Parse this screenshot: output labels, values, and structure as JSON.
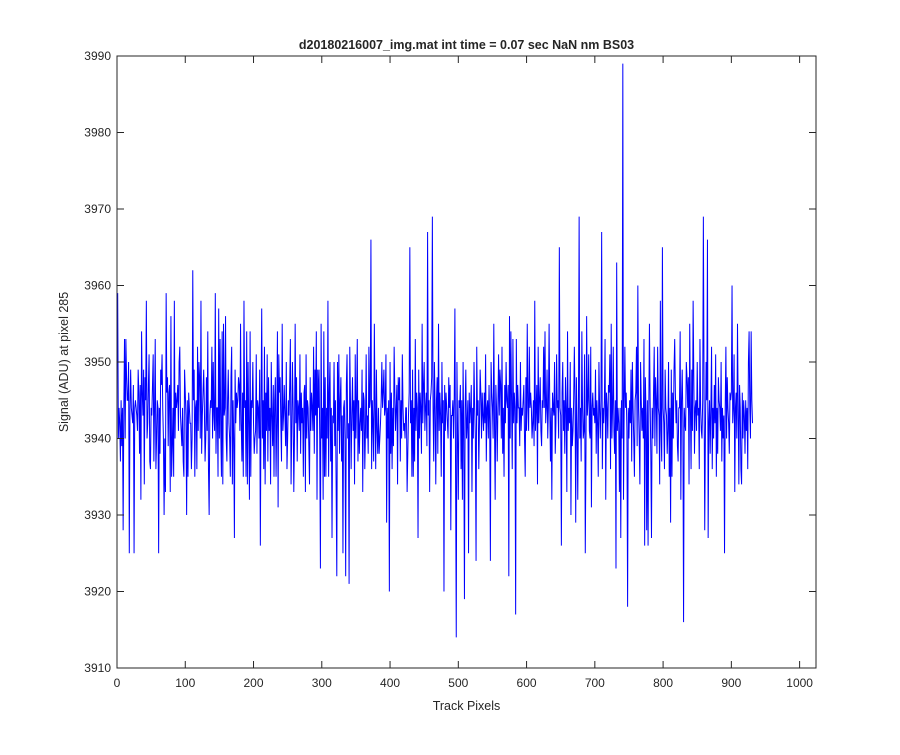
{
  "chart_data": {
    "type": "line",
    "title": "d20180216007_img.mat int time = 0.07 sec  NaN nm BS03",
    "xlabel": "Track Pixels",
    "ylabel": "Signal (ADU) at pixel 285",
    "xlim": [
      0,
      1024
    ],
    "ylim": [
      3910,
      3990
    ],
    "xticks": [
      0,
      100,
      200,
      300,
      400,
      500,
      600,
      700,
      800,
      900,
      1000
    ],
    "yticks": [
      3910,
      3920,
      3930,
      3940,
      3950,
      3960,
      3970,
      3980,
      3990
    ],
    "grid": false,
    "legend": "none",
    "series": [
      {
        "color": "#0000ff",
        "x_start": 1,
        "x_step": 1,
        "values": [
          3959,
          3940,
          3944,
          3942,
          3937,
          3945,
          3939,
          3944,
          3928,
          3944,
          3953,
          3940,
          3953,
          3948,
          3945,
          3945,
          3950,
          3925,
          3944,
          3949,
          3944,
          3943,
          3942,
          3947,
          3925,
          3944,
          3945,
          3944,
          3943,
          3941,
          3949,
          3946,
          3938,
          3947,
          3932,
          3954,
          3946,
          3943,
          3949,
          3934,
          3948,
          3945,
          3958,
          3940,
          3942,
          3947,
          3951,
          3937,
          3936,
          3944,
          3943,
          3947,
          3951,
          3937,
          3944,
          3953,
          3936,
          3940,
          3945,
          3944,
          3925,
          3944,
          3938,
          3949,
          3947,
          3951,
          3944,
          3940,
          3930,
          3940,
          3933,
          3959,
          3946,
          3948,
          3939,
          3946,
          3947,
          3933,
          3956,
          3935,
          3939,
          3944,
          3935,
          3958,
          3940,
          3946,
          3944,
          3945,
          3947,
          3941,
          3950,
          3952,
          3943,
          3941,
          3939,
          3944,
          3937,
          3935,
          3949,
          3946,
          3943,
          3930,
          3945,
          3935,
          3946,
          3944,
          3942,
          3942,
          3936,
          3940,
          3962,
          3945,
          3949,
          3935,
          3944,
          3945,
          3936,
          3952,
          3941,
          3950,
          3948,
          3940,
          3958,
          3938,
          3943,
          3946,
          3949,
          3944,
          3937,
          3940,
          3948,
          3941,
          3954,
          3936,
          3930,
          3943,
          3945,
          3944,
          3952,
          3940,
          3950,
          3943,
          3941,
          3959,
          3938,
          3944,
          3944,
          3935,
          3957,
          3940,
          3953,
          3941,
          3935,
          3954,
          3934,
          3955,
          3943,
          3944,
          3956,
          3940,
          3937,
          3945,
          3949,
          3942,
          3940,
          3935,
          3948,
          3952,
          3934,
          3945,
          3940,
          3927,
          3949,
          3942,
          3946,
          3944,
          3945,
          3948,
          3947,
          3941,
          3955,
          3942,
          3937,
          3946,
          3935,
          3958,
          3944,
          3945,
          3935,
          3954,
          3934,
          3950,
          3942,
          3932,
          3954,
          3935,
          3945,
          3944,
          3950,
          3942,
          3938,
          3940,
          3941,
          3951,
          3938,
          3945,
          3944,
          3940,
          3949,
          3926,
          3944,
          3957,
          3940,
          3945,
          3936,
          3952,
          3934,
          3946,
          3941,
          3951,
          3937,
          3948,
          3941,
          3944,
          3934,
          3950,
          3943,
          3939,
          3947,
          3935,
          3945,
          3948,
          3935,
          3942,
          3954,
          3931,
          3951,
          3946,
          3948,
          3942,
          3937,
          3955,
          3941,
          3943,
          3947,
          3943,
          3939,
          3950,
          3936,
          3940,
          3945,
          3943,
          3947,
          3953,
          3934,
          3941,
          3950,
          3944,
          3933,
          3940,
          3955,
          3942,
          3948,
          3937,
          3945,
          3944,
          3941,
          3951,
          3938,
          3946,
          3942,
          3944,
          3935,
          3946,
          3947,
          3933,
          3951,
          3940,
          3945,
          3944,
          3939,
          3934,
          3948,
          3941,
          3946,
          3944,
          3941,
          3952,
          3938,
          3949,
          3943,
          3954,
          3932,
          3949,
          3944,
          3949,
          3940,
          3923,
          3955,
          3940,
          3944,
          3932,
          3954,
          3935,
          3948,
          3935,
          3944,
          3940,
          3958,
          3935,
          3946,
          3950,
          3937,
          3944,
          3927,
          3943,
          3942,
          3950,
          3939,
          3945,
          3934,
          3922,
          3950,
          3941,
          3951,
          3938,
          3945,
          3948,
          3937,
          3943,
          3925,
          3944,
          3945,
          3940,
          3922,
          3947,
          3951,
          3940,
          3942,
          3921,
          3952,
          3945,
          3936,
          3943,
          3948,
          3941,
          3945,
          3934,
          3951,
          3940,
          3945,
          3953,
          3937,
          3945,
          3938,
          3942,
          3944,
          3941,
          3949,
          3933,
          3946,
          3945,
          3936,
          3941,
          3951,
          3940,
          3943,
          3938,
          3952,
          3944,
          3945,
          3966,
          3936,
          3945,
          3942,
          3937,
          3955,
          3944,
          3936,
          3949,
          3941,
          3938,
          3944,
          3938,
          3940,
          3942,
          3945,
          3950,
          3944,
          3946,
          3949,
          3943,
          3944,
          3951,
          3929,
          3944,
          3940,
          3945,
          3920,
          3950,
          3938,
          3946,
          3936,
          3944,
          3939,
          3952,
          3946,
          3941,
          3944,
          3947,
          3934,
          3948,
          3945,
          3948,
          3937,
          3945,
          3940,
          3951,
          3944,
          3941,
          3942,
          3940,
          3944,
          3944,
          3933,
          3938,
          3943,
          3946,
          3965,
          3942,
          3945,
          3935,
          3949,
          3935,
          3944,
          3937,
          3953,
          3941,
          3946,
          3944,
          3927,
          3949,
          3940,
          3946,
          3944,
          3938,
          3955,
          3942,
          3947,
          3950,
          3941,
          3944,
          3946,
          3939,
          3967,
          3943,
          3945,
          3933,
          3945,
          3946,
          3948,
          3969,
          3944,
          3937,
          3950,
          3944,
          3934,
          3945,
          3948,
          3938,
          3955,
          3941,
          3946,
          3943,
          3935,
          3950,
          3942,
          3945,
          3920,
          3947,
          3941,
          3946,
          3944,
          3942,
          3940,
          3948,
          3944,
          3947,
          3928,
          3943,
          3943,
          3945,
          3940,
          3945,
          3957,
          3935,
          3914,
          3950,
          3940,
          3932,
          3945,
          3944,
          3947,
          3936,
          3945,
          3932,
          3950,
          3940,
          3919,
          3944,
          3949,
          3940,
          3942,
          3945,
          3925,
          3946,
          3942,
          3944,
          3947,
          3933,
          3944,
          3940,
          3950,
          3944,
          3940,
          3924,
          3952,
          3943,
          3945,
          3936,
          3942,
          3949,
          3946,
          3940,
          3946,
          3943,
          3941,
          3946,
          3942,
          3951,
          3937,
          3944,
          3945,
          3940,
          3947,
          3942,
          3924,
          3950,
          3946,
          3944,
          3940,
          3955,
          3942,
          3932,
          3947,
          3944,
          3937,
          3944,
          3951,
          3943,
          3949,
          3947,
          3940,
          3952,
          3938,
          3944,
          3935,
          3947,
          3942,
          3950,
          3945,
          3944,
          3947,
          3922,
          3956,
          3940,
          3954,
          3945,
          3936,
          3953,
          3942,
          3946,
          3944,
          3917,
          3953,
          3942,
          3947,
          3944,
          3944,
          3939,
          3950,
          3941,
          3944,
          3943,
          3945,
          3947,
          3940,
          3935,
          3948,
          3941,
          3955,
          3944,
          3941,
          3952,
          3944,
          3946,
          3944,
          3940,
          3942,
          3945,
          3939,
          3958,
          3941,
          3944,
          3947,
          3934,
          3952,
          3942,
          3945,
          3948,
          3941,
          3939,
          3945,
          3944,
          3952,
          3944,
          3954,
          3942,
          3944,
          3949,
          3940,
          3944,
          3955,
          3944,
          3937,
          3944,
          3932,
          3946,
          3944,
          3943,
          3950,
          3938,
          3942,
          3951,
          3944,
          3945,
          3940,
          3965,
          3944,
          3943,
          3926,
          3946,
          3950,
          3941,
          3945,
          3938,
          3948,
          3944,
          3933,
          3954,
          3941,
          3944,
          3942,
          3950,
          3930,
          3944,
          3939,
          3941,
          3945,
          3952,
          3945,
          3929,
          3948,
          3941,
          3932,
          3944,
          3969,
          3940,
          3944,
          3937,
          3954,
          3944,
          3940,
          3941,
          3951,
          3925,
          3938,
          3956,
          3943,
          3945,
          3951,
          3941,
          3940,
          3952,
          3931,
          3944,
          3946,
          3943,
          3944,
          3942,
          3949,
          3938,
          3945,
          3942,
          3935,
          3950,
          3944,
          3940,
          3945,
          3967,
          3936,
          3944,
          3942,
          3945,
          3953,
          3932,
          3946,
          3944,
          3940,
          3947,
          3946,
          3951,
          3936,
          3955,
          3940,
          3944,
          3952,
          3941,
          3938,
          3945,
          3923,
          3963,
          3941,
          3944,
          3942,
          3933,
          3944,
          3927,
          3945,
          3940,
          3989,
          3932,
          3944,
          3952,
          3944,
          3946,
          3941,
          3918,
          3944,
          3940,
          3945,
          3942,
          3949,
          3937,
          3950,
          3944,
          3940,
          3935,
          3945,
          3946,
          3952,
          3939,
          3960,
          3944,
          3940,
          3934,
          3950,
          3945,
          3941,
          3944,
          3940,
          3953,
          3926,
          3948,
          3943,
          3928,
          3945,
          3926,
          3943,
          3955,
          3945,
          3938,
          3927,
          3944,
          3940,
          3946,
          3952,
          3939,
          3948,
          3945,
          3938,
          3952,
          3944,
          3943,
          3934,
          3958,
          3941,
          3937,
          3965,
          3944,
          3942,
          3936,
          3949,
          3944,
          3943,
          3938,
          3941,
          3950,
          3935,
          3944,
          3929,
          3949,
          3935,
          3946,
          3940,
          3949,
          3953,
          3946,
          3942,
          3945,
          3939,
          3937,
          3944,
          3944,
          3954,
          3932,
          3945,
          3949,
          3942,
          3916,
          3944,
          3942,
          3941,
          3950,
          3948,
          3944,
          3948,
          3934,
          3955,
          3944,
          3936,
          3949,
          3941,
          3958,
          3948,
          3938,
          3944,
          3945,
          3941,
          3950,
          3943,
          3944,
          3936,
          3953,
          3944,
          3941,
          3940,
          3945,
          3969,
          3947,
          3928,
          3941,
          3950,
          3945,
          3966,
          3927,
          3942,
          3945,
          3938,
          3944,
          3952,
          3936,
          3944,
          3940,
          3947,
          3942,
          3951,
          3935,
          3944,
          3938,
          3948,
          3945,
          3944,
          3941,
          3950,
          3937,
          3944,
          3940,
          3943,
          3925,
          3944,
          3952,
          3940,
          3948,
          3944,
          3942,
          3938,
          3946,
          3945,
          3946,
          3960,
          3942,
          3944,
          3951,
          3933,
          3944,
          3946,
          3940,
          3955,
          3944,
          3934,
          3947,
          3944,
          3936,
          3934,
          3946,
          3940,
          3945,
          3943,
          3938,
          3945,
          3941,
          3944,
          3936,
          3950,
          3954,
          3944,
          3940,
          3954,
          3945,
          3942
        ]
      }
    ]
  }
}
